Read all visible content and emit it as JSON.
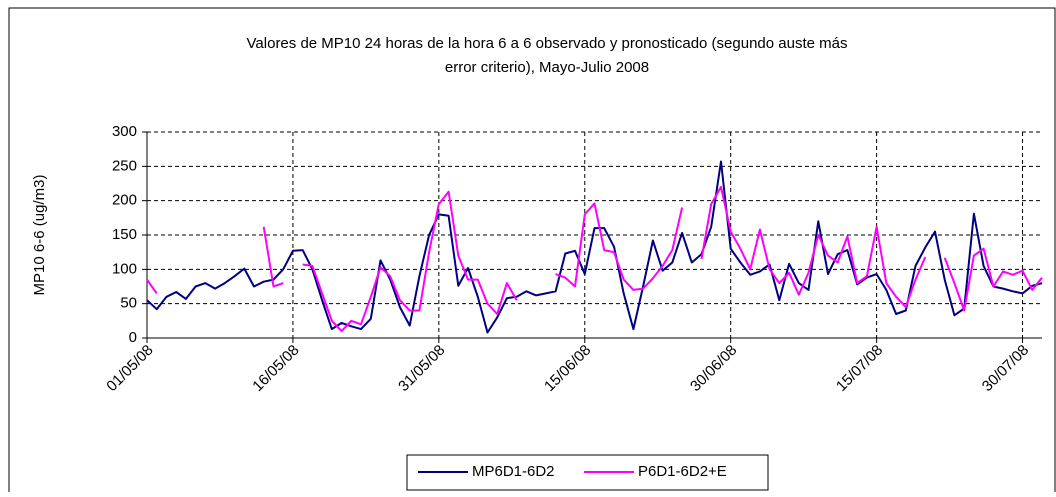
{
  "chart_data": {
    "type": "line",
    "title": [
      "Valores de MP10 24 horas de la hora 6 a 6 observado y pronosticado (segundo auste más",
      "error criterio), Mayo-Julio 2008"
    ],
    "y_label": "MP10 6-6 (ug/m3)",
    "x": [
      "01/05/08",
      "02/05/08",
      "03/05/08",
      "04/05/08",
      "05/05/08",
      "06/05/08",
      "07/05/08",
      "08/05/08",
      "09/05/08",
      "10/05/08",
      "11/05/08",
      "12/05/08",
      "13/05/08",
      "14/05/08",
      "15/05/08",
      "16/05/08",
      "17/05/08",
      "18/05/08",
      "19/05/08",
      "20/05/08",
      "21/05/08",
      "22/05/08",
      "23/05/08",
      "24/05/08",
      "25/05/08",
      "26/05/08",
      "27/05/08",
      "28/05/08",
      "29/05/08",
      "30/05/08",
      "31/05/08",
      "01/06/08",
      "02/06/08",
      "03/06/08",
      "04/06/08",
      "05/06/08",
      "06/06/08",
      "07/06/08",
      "08/06/08",
      "09/06/08",
      "10/06/08",
      "11/06/08",
      "12/06/08",
      "13/06/08",
      "14/06/08",
      "15/06/08",
      "16/06/08",
      "17/06/08",
      "18/06/08",
      "19/06/08",
      "20/06/08",
      "21/06/08",
      "22/06/08",
      "23/06/08",
      "24/06/08",
      "25/06/08",
      "26/06/08",
      "27/06/08",
      "28/06/08",
      "29/06/08",
      "30/06/08",
      "01/07/08",
      "02/07/08",
      "03/07/08",
      "04/07/08",
      "05/07/08",
      "06/07/08",
      "07/07/08",
      "08/07/08",
      "09/07/08",
      "10/07/08",
      "11/07/08",
      "12/07/08",
      "13/07/08",
      "14/07/08",
      "15/07/08",
      "16/07/08",
      "17/07/08",
      "18/07/08",
      "19/07/08",
      "20/07/08",
      "21/07/08",
      "22/07/08",
      "23/07/08",
      "24/07/08",
      "25/07/08",
      "26/07/08",
      "27/07/08",
      "28/07/08",
      "29/07/08",
      "30/07/08",
      "31/07/08",
      "01/08/08"
    ],
    "series": [
      {
        "name": "MP6D1-6D2",
        "color": "#000080",
        "values": [
          55,
          42,
          60,
          67,
          57,
          75,
          80,
          72,
          80,
          90,
          101,
          75,
          82,
          85,
          100,
          127,
          128,
          100,
          55,
          13,
          22,
          17,
          13,
          28,
          113,
          85,
          45,
          18,
          90,
          150,
          180,
          178,
          76,
          102,
          60,
          8,
          30,
          58,
          60,
          68,
          62,
          65,
          68,
          123,
          127,
          93,
          160,
          160,
          133,
          65,
          13,
          75,
          142,
          98,
          110,
          153,
          110,
          122,
          162,
          257,
          130,
          110,
          92,
          97,
          107,
          55,
          108,
          80,
          70,
          170,
          93,
          122,
          128,
          78,
          88,
          93,
          70,
          35,
          40,
          105,
          132,
          155,
          85,
          33,
          43,
          181,
          105,
          75,
          72,
          68,
          65,
          76,
          80
        ]
      },
      {
        "name": "P6D1-6D2+E",
        "color": "#ff00ff",
        "values": [
          85,
          65,
          null,
          null,
          null,
          null,
          null,
          null,
          null,
          null,
          null,
          null,
          162,
          75,
          80,
          null,
          107,
          105,
          65,
          25,
          10,
          25,
          20,
          60,
          103,
          90,
          55,
          40,
          40,
          125,
          195,
          213,
          120,
          85,
          85,
          50,
          35,
          80,
          55,
          null,
          null,
          null,
          93,
          88,
          75,
          180,
          196,
          128,
          125,
          85,
          70,
          72,
          87,
          105,
          128,
          190,
          null,
          115,
          195,
          220,
          155,
          130,
          100,
          158,
          100,
          80,
          95,
          63,
          95,
          150,
          120,
          110,
          148,
          80,
          90,
          162,
          80,
          60,
          45,
          85,
          118,
          null,
          117,
          80,
          40,
          120,
          130,
          75,
          97,
          92,
          98,
          70,
          88
        ]
      }
    ],
    "xlim": [
      "01/05/08",
      "01/08/08"
    ],
    "xticks": [
      "01/05/08",
      "16/05/08",
      "31/05/08",
      "15/06/08",
      "30/06/08",
      "15/07/08",
      "30/07/08"
    ],
    "ylim": [
      0,
      300
    ],
    "yticks": [
      0,
      50,
      100,
      150,
      200,
      250,
      300
    ],
    "grid": true,
    "legend": "bottom"
  }
}
